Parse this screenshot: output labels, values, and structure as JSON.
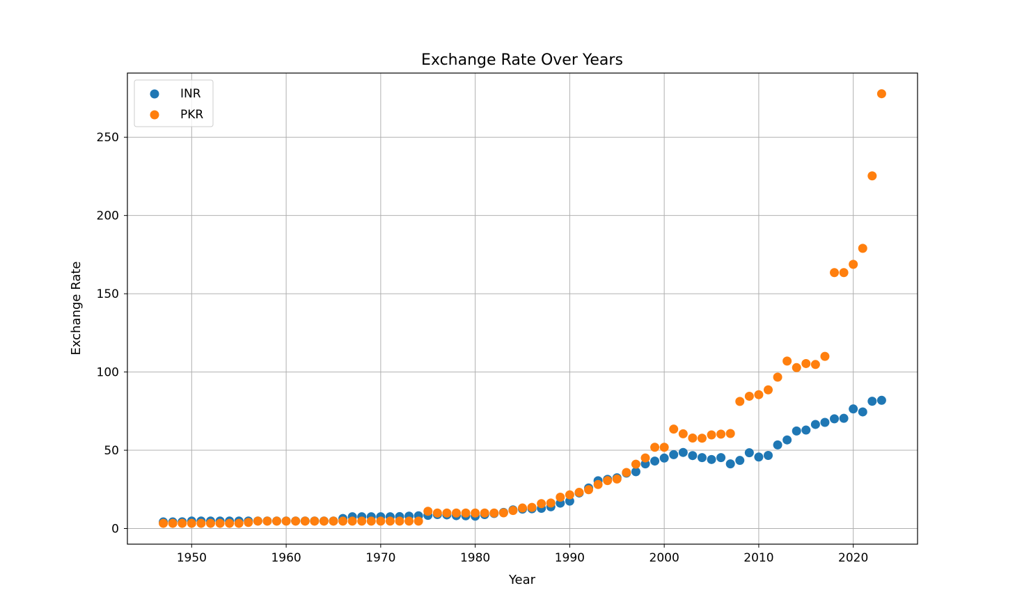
{
  "chart_data": {
    "type": "scatter",
    "title": "Exchange Rate Over Years",
    "xlabel": "Year",
    "ylabel": "Exchange Rate",
    "xlim": [
      1943.2,
      1926.8
    ],
    "xlim_note": "",
    "x_range": [
      1943.2,
      2026.8
    ],
    "ylim": [
      -10,
      291
    ],
    "xticks": [
      1950,
      1960,
      1970,
      1980,
      1990,
      2000,
      2010,
      2020
    ],
    "yticks": [
      0,
      50,
      100,
      150,
      200,
      250
    ],
    "grid": true,
    "legend_position": "top-left",
    "series": [
      {
        "name": "INR",
        "color": "#1f77b4",
        "x": [
          1947,
          1948,
          1949,
          1950,
          1951,
          1952,
          1953,
          1954,
          1955,
          1956,
          1957,
          1958,
          1959,
          1960,
          1961,
          1962,
          1963,
          1964,
          1965,
          1966,
          1967,
          1968,
          1969,
          1970,
          1971,
          1972,
          1973,
          1974,
          1975,
          1976,
          1977,
          1978,
          1979,
          1980,
          1981,
          1982,
          1983,
          1984,
          1985,
          1986,
          1987,
          1988,
          1989,
          1990,
          1991,
          1992,
          1993,
          1994,
          1995,
          1996,
          1997,
          1998,
          1999,
          2000,
          2001,
          2002,
          2003,
          2004,
          2005,
          2006,
          2007,
          2008,
          2009,
          2010,
          2011,
          2012,
          2013,
          2014,
          2015,
          2016,
          2017,
          2018,
          2019,
          2020,
          2021,
          2022,
          2023
        ],
        "values": [
          4.2,
          4.2,
          4.3,
          4.8,
          4.8,
          4.8,
          4.8,
          4.8,
          4.8,
          4.8,
          4.8,
          4.8,
          4.8,
          4.8,
          4.8,
          4.8,
          4.8,
          4.8,
          4.8,
          6.4,
          7.5,
          7.5,
          7.5,
          7.5,
          7.5,
          7.6,
          7.9,
          8.1,
          8.4,
          8.9,
          8.7,
          8.2,
          8.1,
          7.9,
          8.9,
          9.6,
          10.3,
          11.9,
          12.4,
          12.6,
          12.9,
          13.9,
          16.2,
          17.5,
          22.7,
          25.9,
          30.5,
          31.4,
          32.4,
          35.4,
          36.3,
          41.3,
          43.1,
          45.0,
          47.2,
          48.6,
          46.6,
          45.3,
          44.1,
          45.3,
          41.3,
          43.5,
          48.4,
          45.7,
          46.7,
          53.4,
          56.6,
          62.3,
          62.9,
          66.5,
          67.8,
          70.1,
          70.4,
          76.4,
          74.5,
          81.3,
          81.9
        ]
      },
      {
        "name": "PKR",
        "color": "#ff7f0e",
        "x": [
          1947,
          1948,
          1949,
          1950,
          1951,
          1952,
          1953,
          1954,
          1955,
          1956,
          1957,
          1958,
          1959,
          1960,
          1961,
          1962,
          1963,
          1964,
          1965,
          1966,
          1967,
          1968,
          1969,
          1970,
          1971,
          1972,
          1973,
          1974,
          1975,
          1976,
          1977,
          1978,
          1979,
          1980,
          1981,
          1982,
          1983,
          1984,
          1985,
          1986,
          1987,
          1988,
          1989,
          1990,
          1991,
          1992,
          1993,
          1994,
          1995,
          1996,
          1997,
          1998,
          1999,
          2000,
          2001,
          2002,
          2003,
          2004,
          2005,
          2006,
          2007,
          2008,
          2009,
          2010,
          2011,
          2012,
          2013,
          2014,
          2015,
          2016,
          2017,
          2018,
          2019,
          2020,
          2021,
          2022,
          2023
        ],
        "values": [
          3.3,
          3.3,
          3.3,
          3.3,
          3.3,
          3.3,
          3.3,
          3.3,
          3.3,
          3.9,
          4.7,
          4.7,
          4.7,
          4.7,
          4.7,
          4.7,
          4.7,
          4.7,
          4.7,
          4.7,
          4.7,
          4.7,
          4.7,
          4.7,
          4.7,
          4.7,
          4.7,
          4.7,
          11.0,
          9.9,
          9.9,
          9.9,
          9.9,
          9.9,
          9.9,
          9.9,
          10.0,
          11.5,
          13.1,
          13.5,
          15.9,
          16.3,
          20.0,
          21.5,
          23.1,
          24.8,
          28.1,
          30.6,
          31.6,
          35.8,
          41.1,
          45.1,
          51.9,
          51.9,
          63.5,
          60.5,
          57.8,
          57.7,
          59.8,
          60.3,
          60.7,
          81.2,
          84.5,
          85.5,
          88.6,
          96.7,
          107.0,
          102.8,
          105.4,
          104.8,
          110.0,
          163.5,
          163.5,
          168.8,
          179.0,
          225.3,
          277.8
        ]
      }
    ]
  }
}
